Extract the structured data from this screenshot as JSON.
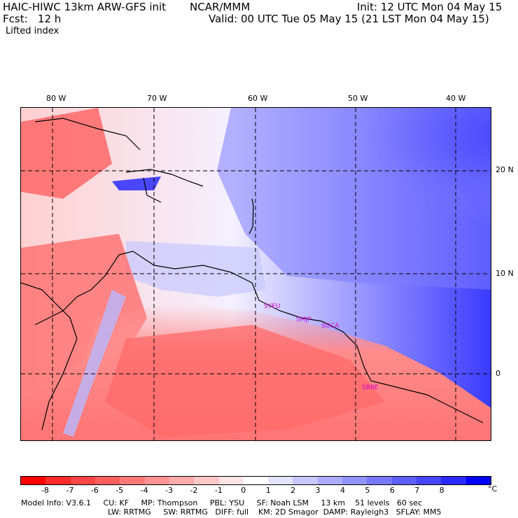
{
  "header": {
    "model": "HAIC-HIWC 13km ARW-GFS init",
    "org": "NCAR/MMM",
    "init": "Init: 12 UTC Mon 04 May 15",
    "fcst": "Fcst:   12 h",
    "valid": "Valid: 00 UTC Tue 05 May 15 (21 LST Mon 04 May 15)",
    "field": "Lifted index"
  },
  "map": {
    "longitude_labels": [
      "80 W",
      "70 W",
      "60 W",
      "50 W",
      "40 W"
    ],
    "latitude_labels": [
      "20 N",
      "10 N",
      "0"
    ],
    "stations": [
      "SYEU",
      "SMJP",
      "SOCA",
      "SBBE"
    ]
  },
  "colorbar": {
    "labels": [
      "-8",
      "-7",
      "-6",
      "-5",
      "-4",
      "-3",
      "-2",
      "-1",
      "0",
      "1",
      "2",
      "3",
      "4",
      "5",
      "6",
      "7",
      "8"
    ],
    "unit": "°C",
    "colors": [
      "#ff0000",
      "#ff2a2a",
      "#ff4646",
      "#ff5e5e",
      "#ff7878",
      "#ff9292",
      "#ffacac",
      "#ffc8c8",
      "#ffe4e4",
      "#ffffff",
      "#e4e4ff",
      "#c8c8ff",
      "#acacff",
      "#9292ff",
      "#7878ff",
      "#5e5eff",
      "#4646ff",
      "#2a2aff",
      "#0000ff"
    ]
  },
  "model_info": {
    "line1": "Model Info: V3.6.1     CU: KF     MP: Thompson     PBL: YSU     SF: Noah LSM     13 km    51 levels   60 sec",
    "line2": "LW: RRTMG     SW: RRTMG   DIFF: full    KM: 2D Smagor  DAMP: Rayleigh3   SFLAY: MM5"
  }
}
